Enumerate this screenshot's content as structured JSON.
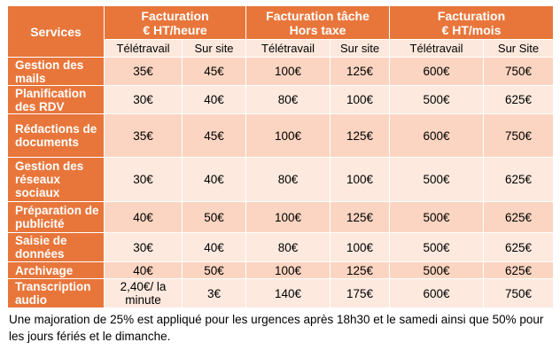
{
  "header": {
    "services": "Services",
    "groups": [
      {
        "line1": "Facturation",
        "line2": "€ HT/heure"
      },
      {
        "line1": "Facturation tâche",
        "line2": "Hors taxe"
      },
      {
        "line1": "Facturation",
        "line2": "€ HT/mois"
      }
    ],
    "sub": [
      "Télétravail",
      "Sur site",
      "Télétravail",
      "Sur site",
      "Télétravail",
      "Sur Site"
    ]
  },
  "rows": [
    {
      "label": "Gestion des mails",
      "values": [
        "35€",
        "45€",
        "100€",
        "125€",
        "600€",
        "750€"
      ]
    },
    {
      "label": "Planification des RDV",
      "values": [
        "30€",
        "40€",
        "80€",
        "100€",
        "500€",
        "625€"
      ]
    },
    {
      "label": "Rédactions de documents",
      "values": [
        "35€",
        "45€",
        "100€",
        "125€",
        "600€",
        "750€"
      ]
    },
    {
      "label": "Gestion des réseaux sociaux",
      "values": [
        "30€",
        "40€",
        "80€",
        "100€",
        "500€",
        "625€"
      ]
    },
    {
      "label": "Préparation de publicité",
      "values": [
        "40€",
        "50€",
        "100€",
        "125€",
        "500€",
        "625€"
      ]
    },
    {
      "label": "Saisie de données",
      "values": [
        "30€",
        "40€",
        "80€",
        "100€",
        "500€",
        "625€"
      ]
    },
    {
      "label": "Archivage",
      "values": [
        "40€",
        "50€",
        "100€",
        "125€",
        "500€",
        "625€"
      ]
    },
    {
      "label": "Transcription audio",
      "values": [
        "2,40€/ la minute",
        "3€",
        "140€",
        "175€",
        "600€",
        "750€"
      ]
    }
  ],
  "note": "Une majoration de 25% est appliqué pour les urgences après 18h30 et le samedi ainsi que 50% pour les jours fériés et le dimanche."
}
